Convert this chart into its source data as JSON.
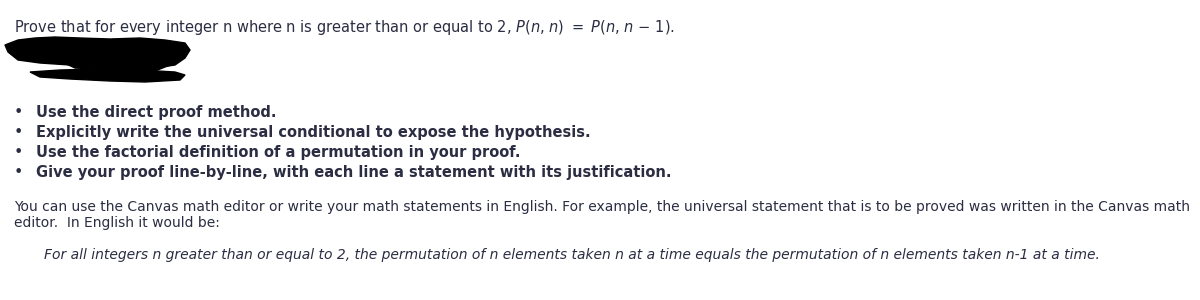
{
  "bg_color": "#ffffff",
  "text_color": "#2b2d42",
  "bullet_items": [
    "Use the direct proof method.",
    "Explicitly write the universal conditional to expose the hypothesis.",
    "Use the factorial definition of a permutation in your proof.",
    "Give your proof line-by-line, with each line a statement with its justification."
  ],
  "body_line1": "You can use the Canvas math editor or write your math statements in English. For example, the universal statement that is to be proved was written in the Canvas math",
  "body_line2": "editor.  In English it would be:",
  "indented_text": "For all integers n greater than or equal to 2, the permutation of n elements taken n at a time equals the permutation of n elements taken n-1 at a time.",
  "font_size_title": 10.5,
  "font_size_bullet": 10.5,
  "font_size_body": 10.0,
  "font_size_indented": 10.0,
  "blob_color": "#000000"
}
